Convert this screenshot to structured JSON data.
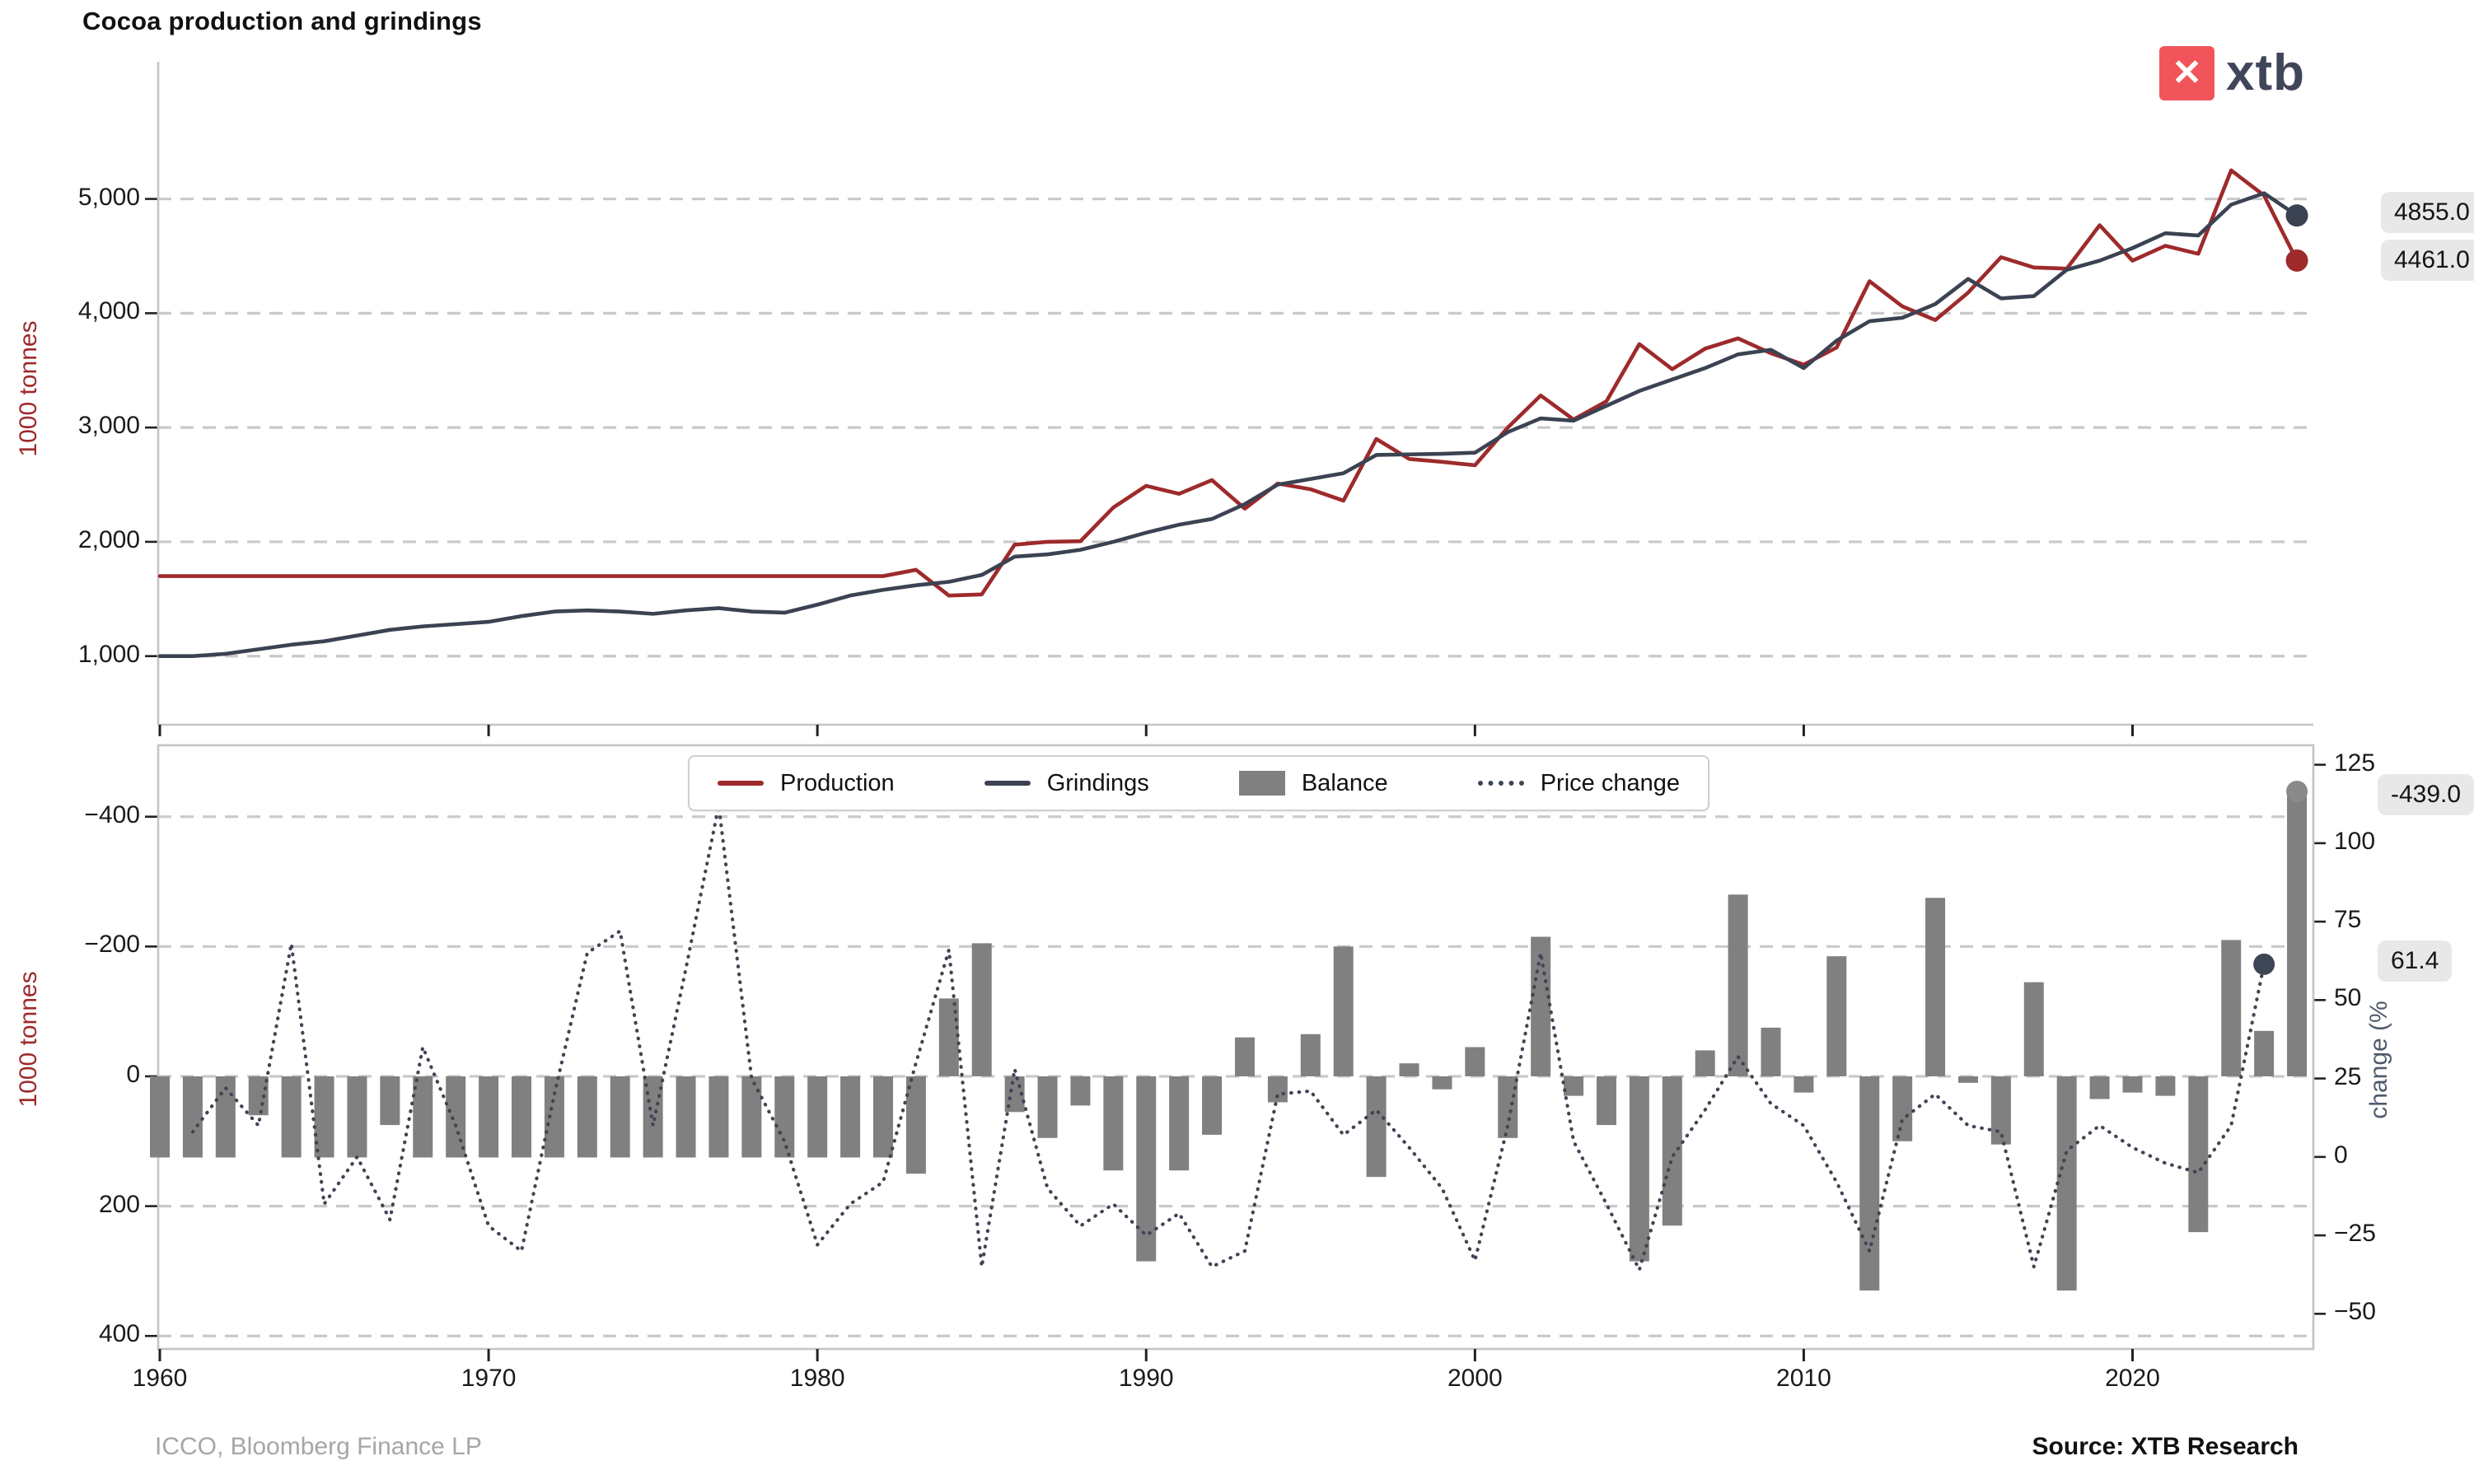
{
  "header": {
    "title": "Cocoa production and grindings",
    "logo_text": "xtb"
  },
  "axes": {
    "top_ylabel": "1000 tonnes",
    "bottom_ylabel": "1000 tonnes",
    "right_ylabel": "change (%"
  },
  "legend": {
    "items": [
      {
        "label": "Production",
        "swatch": "line",
        "color": "#9e2a2b"
      },
      {
        "label": "Grindings",
        "swatch": "line",
        "color": "#3b4252"
      },
      {
        "label": "Balance",
        "swatch": "rect",
        "color": "#808080"
      },
      {
        "label": "Price change",
        "swatch": "dotted",
        "color": "#3e4555"
      }
    ]
  },
  "end_labels": {
    "grindings": "4855.0",
    "production": "4461.0",
    "balance": "-439.0",
    "price_change": "61.4"
  },
  "footer": {
    "left_source": "ICCO, Bloomberg Finance LP",
    "right_source": "Source: XTB Research"
  },
  "colors": {
    "production": "#9e2a2b",
    "grindings": "#3b4252",
    "balance_bar": "#808080",
    "price_change": "#3e4555",
    "grid": "#c9c9c9",
    "spine": "#c4c4c4",
    "tick_mark": "#222222",
    "label_box_bg": "#e8e8e8",
    "logo_red": "#f2545c",
    "logo_text": "#40465a",
    "muted_text": "#a6a6a6"
  },
  "chart_data": [
    {
      "type": "line",
      "title": "Cocoa production and grindings",
      "ylabel": "1000 tonnes",
      "grid": true,
      "legend_position": "bottom-panel-top-center",
      "x": [
        1960,
        1961,
        1962,
        1963,
        1964,
        1965,
        1966,
        1967,
        1968,
        1969,
        1970,
        1971,
        1972,
        1973,
        1974,
        1975,
        1976,
        1977,
        1978,
        1979,
        1980,
        1981,
        1982,
        1983,
        1984,
        1985,
        1986,
        1987,
        1988,
        1989,
        1990,
        1991,
        1992,
        1993,
        1994,
        1995,
        1996,
        1997,
        1998,
        1999,
        2000,
        2001,
        2002,
        2003,
        2004,
        2005,
        2006,
        2007,
        2008,
        2009,
        2010,
        2011,
        2012,
        2013,
        2014,
        2015,
        2016,
        2017,
        2018,
        2019,
        2020,
        2021,
        2022,
        2023,
        2024,
        2025
      ],
      "yticks": [
        1000,
        2000,
        3000,
        4000,
        5000
      ],
      "ytick_labels": [
        "1,000",
        "2,000",
        "3,000",
        "4,000",
        "5,000"
      ],
      "ylim": [
        400,
        6200
      ],
      "series": [
        {
          "name": "Production",
          "color": "#9e2a2b",
          "end_value": 4461.0,
          "values": [
            1700,
            1700,
            1700,
            1700,
            1700,
            1700,
            1700,
            1700,
            1700,
            1700,
            1700,
            1700,
            1700,
            1700,
            1700,
            1700,
            1700,
            1700,
            1700,
            1700,
            1700,
            1700,
            1700,
            1755,
            1530,
            1540,
            1975,
            2000,
            2005,
            2300,
            2490,
            2420,
            2540,
            2290,
            2510,
            2460,
            2360,
            2900,
            2725,
            2700,
            2670,
            3000,
            3280,
            3070,
            3230,
            3730,
            3510,
            3690,
            3780,
            3650,
            3550,
            3700,
            4280,
            4060,
            3940,
            4180,
            4490,
            4400,
            4390,
            4770,
            4460,
            4590,
            4520,
            5250,
            5030,
            4461
          ]
        },
        {
          "name": "Grindings",
          "color": "#3b4252",
          "end_value": 4855.0,
          "values": [
            1000,
            1000,
            1020,
            1060,
            1100,
            1130,
            1180,
            1230,
            1260,
            1280,
            1300,
            1350,
            1390,
            1400,
            1390,
            1370,
            1400,
            1420,
            1390,
            1380,
            1450,
            1530,
            1580,
            1620,
            1650,
            1710,
            1870,
            1890,
            1930,
            2000,
            2080,
            2150,
            2200,
            2330,
            2500,
            2550,
            2600,
            2760,
            2765,
            2770,
            2780,
            2960,
            3080,
            3060,
            3190,
            3320,
            3420,
            3520,
            3640,
            3680,
            3520,
            3760,
            3930,
            3960,
            4080,
            4300,
            4130,
            4150,
            4380,
            4460,
            4570,
            4700,
            4680,
            4950,
            5050,
            4855
          ]
        }
      ]
    },
    {
      "type": "bar+line",
      "ylabel": "1000 tonnes",
      "ylabel_right": "change (%",
      "grid": true,
      "left_axis_inverted": true,
      "x": [
        1960,
        1961,
        1962,
        1963,
        1964,
        1965,
        1966,
        1967,
        1968,
        1969,
        1970,
        1971,
        1972,
        1973,
        1974,
        1975,
        1976,
        1977,
        1978,
        1979,
        1980,
        1981,
        1982,
        1983,
        1984,
        1985,
        1986,
        1987,
        1988,
        1989,
        1990,
        1991,
        1992,
        1993,
        1994,
        1995,
        1996,
        1997,
        1998,
        1999,
        2000,
        2001,
        2002,
        2003,
        2004,
        2005,
        2006,
        2007,
        2008,
        2009,
        2010,
        2011,
        2012,
        2013,
        2014,
        2015,
        2016,
        2017,
        2018,
        2019,
        2020,
        2021,
        2022,
        2023,
        2024,
        2025
      ],
      "xticks": [
        1960,
        1970,
        1980,
        1990,
        2000,
        2010,
        2020
      ],
      "xtick_labels": [
        "1960",
        "1970",
        "1980",
        "1990",
        "2000",
        "2010",
        "2020"
      ],
      "left_yticks": [
        -400,
        -200,
        0,
        200,
        400
      ],
      "left_ytick_labels": [
        "−400",
        "−200",
        "0",
        "200",
        "400"
      ],
      "right_yticks": [
        125,
        100,
        75,
        50,
        25,
        0,
        -25,
        -50
      ],
      "right_ytick_labels": [
        "125",
        "100",
        "75",
        "50",
        "25",
        "0",
        "−25",
        "−50"
      ],
      "bar_series": {
        "name": "Balance",
        "color": "#808080",
        "end_value": -439.0,
        "values": [
          125,
          125,
          125,
          60,
          125,
          125,
          125,
          75,
          125,
          125,
          125,
          125,
          125,
          125,
          125,
          125,
          125,
          125,
          125,
          125,
          125,
          125,
          125,
          150,
          -120,
          -205,
          55,
          95,
          45,
          145,
          285,
          145,
          90,
          -60,
          40,
          -65,
          -200,
          155,
          -20,
          20,
          -45,
          95,
          -215,
          30,
          75,
          285,
          230,
          -40,
          -280,
          -75,
          25,
          -185,
          330,
          100,
          -275,
          10,
          105,
          -145,
          330,
          35,
          25,
          30,
          240,
          -210,
          -70,
          -439
        ]
      },
      "line_series": {
        "name": "Price change",
        "color": "#3e4555",
        "axis": "right",
        "style": "dotted",
        "end_value": 61.4,
        "values": [
          null,
          8,
          22,
          10,
          68,
          -15,
          0,
          -20,
          35,
          10,
          -22,
          -30,
          20,
          65,
          72,
          10,
          60,
          112,
          25,
          5,
          -28,
          -15,
          -8,
          30,
          66,
          -35,
          28,
          -10,
          -22,
          -15,
          -25,
          -18,
          -35,
          -30,
          20,
          21,
          7,
          15,
          3,
          -10,
          -33,
          10,
          65,
          5,
          -15,
          -36,
          0,
          15,
          32,
          17,
          10,
          -8,
          -30,
          12,
          20,
          10,
          8,
          -35,
          2,
          10,
          3,
          -2,
          -5,
          10,
          61.4,
          null
        ]
      }
    }
  ]
}
